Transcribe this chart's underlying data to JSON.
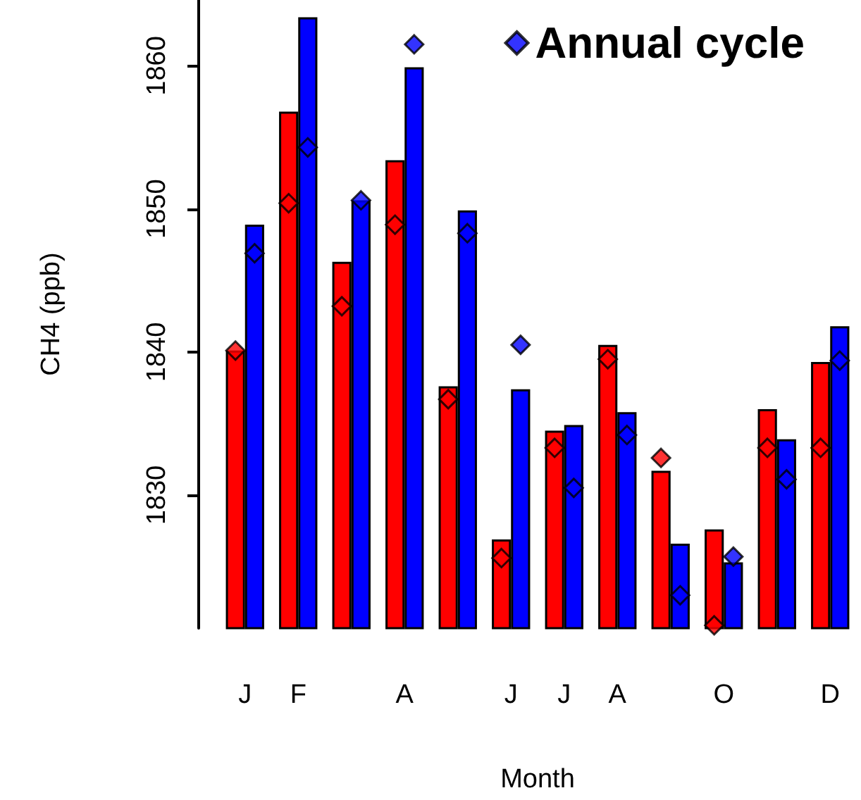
{
  "chart_data": {
    "type": "bar",
    "xlabel": "Month",
    "ylabel": "CH4 (ppb)",
    "categories": [
      "J",
      "F",
      null,
      "A",
      null,
      "J",
      "J",
      "A",
      null,
      "O",
      null,
      "D"
    ],
    "series": [
      {
        "color": "#ff0000",
        "values": [
          1840.1,
          1856.8,
          1846.3,
          1853.4,
          1837.6,
          1826.9,
          1834.5,
          1840.5,
          1831.7,
          1827.6,
          1836.0,
          1839.3
        ]
      },
      {
        "color": "#0000ff",
        "values": [
          1848.9,
          1863.4,
          1850.6,
          1859.9,
          1849.9,
          1837.4,
          1834.9,
          1835.8,
          1826.6,
          1825.3,
          1833.9,
          1841.8
        ]
      },
      {
        "type": "scatter",
        "color": "#ff0000",
        "values": [
          1840.1,
          1850.4,
          1843.2,
          1848.9,
          1836.7,
          1825.6,
          1833.3,
          1839.5,
          1832.6,
          1820.9,
          1833.3,
          1833.3
        ]
      },
      {
        "type": "scatter",
        "name": "Annual cycle",
        "color": "#0000ff",
        "values": [
          1846.9,
          1854.3,
          1850.6,
          1861.5,
          1848.3,
          1840.5,
          1830.5,
          1834.2,
          1823.0,
          1825.7,
          1831.1,
          1839.4
        ]
      }
    ],
    "ylim": [
      1820.7,
      1864.6
    ],
    "yticks": [
      1830,
      1840,
      1850,
      1860
    ],
    "legend": "top right",
    "marker": "diamond"
  }
}
